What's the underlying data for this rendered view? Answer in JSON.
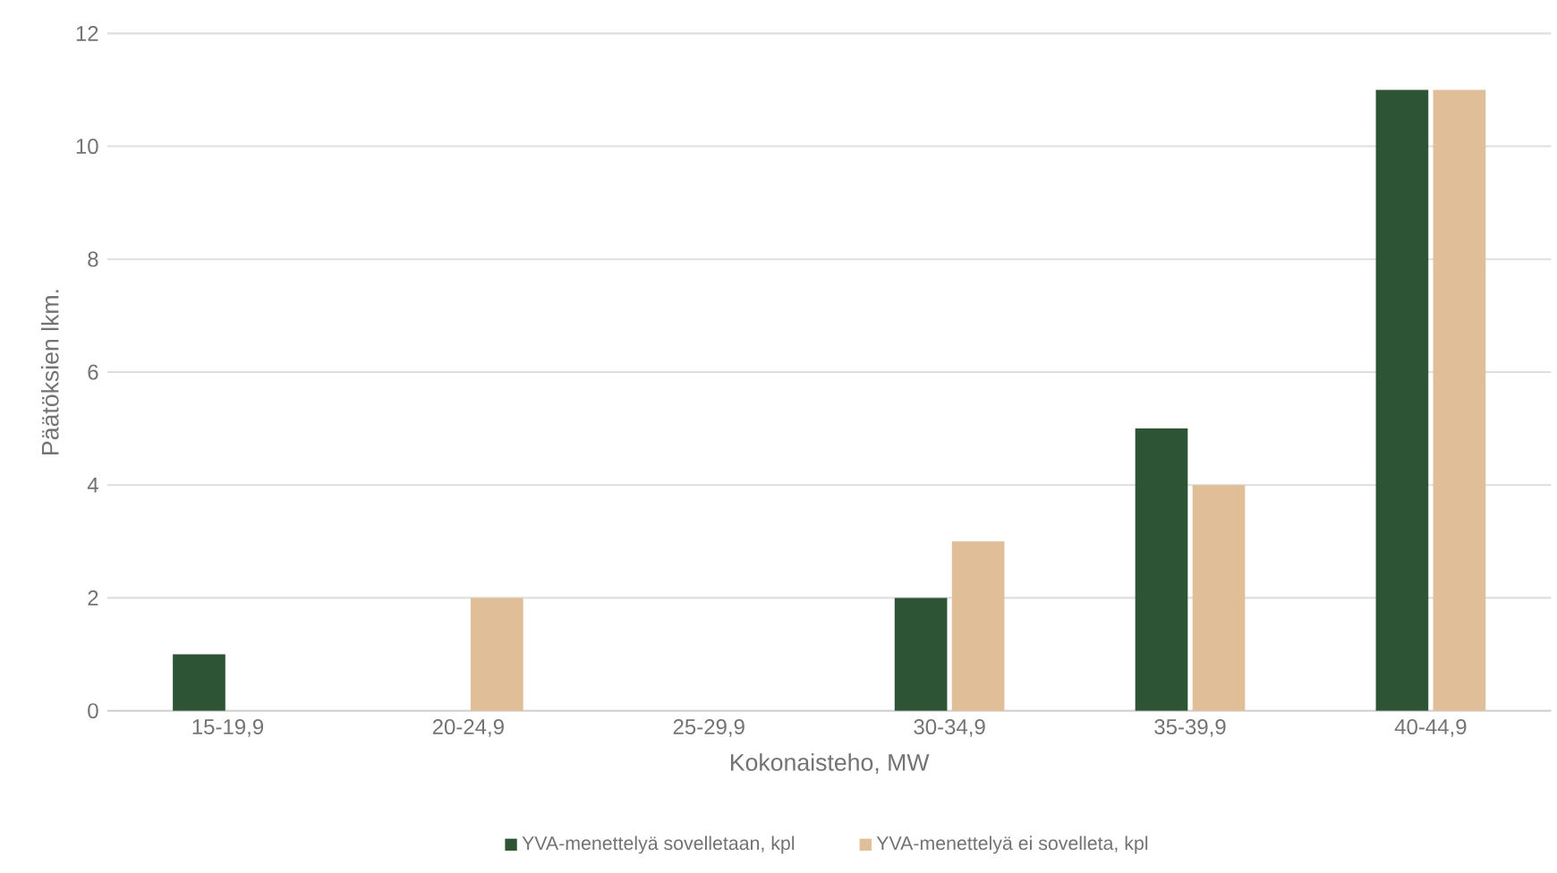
{
  "chart_data": {
    "type": "bar",
    "xlabel": "Kokonaisteho, MW",
    "ylabel": "Päätöksien lkm.",
    "categories": [
      "15-19,9",
      "20-24,9",
      "25-29,9",
      "30-34,9",
      "35-39,9",
      "40-44,9"
    ],
    "series": [
      {
        "name": "YVA-menettelyä sovelletaan, kpl",
        "color": "#2d5434",
        "values": [
          1,
          0,
          0,
          2,
          5,
          11
        ]
      },
      {
        "name": "YVA-menettelyä ei sovelleta, kpl",
        "color": "#dfbe98",
        "values": [
          0,
          2,
          0,
          3,
          4,
          11
        ]
      }
    ],
    "ylim": [
      0,
      12
    ],
    "yticks": [
      0,
      2,
      4,
      6,
      8,
      10,
      12
    ],
    "grid": "y",
    "legend": "bottom"
  }
}
